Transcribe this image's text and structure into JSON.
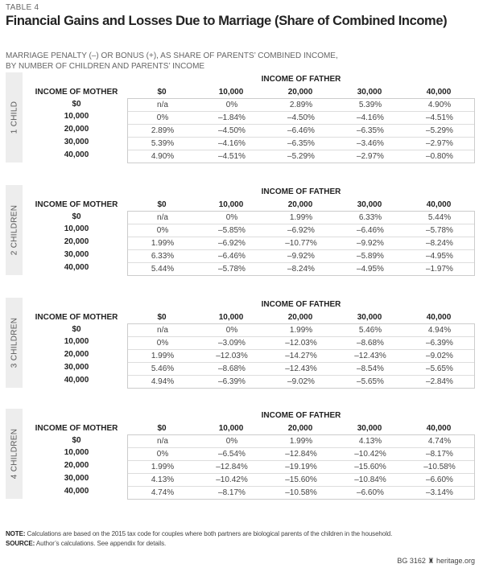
{
  "table_label": "TABLE 4",
  "title": "Financial Gains and Losses Due to Marriage (Share of Combined Income)",
  "subtitle_line1": "MARRIAGE PENALTY (–) OR BONUS (+), AS SHARE OF PARENTS’ COMBINED INCOME,",
  "subtitle_line2": "BY NUMBER OF CHILDREN AND PARENTS’ INCOME",
  "column_group_label": "INCOME OF FATHER",
  "row_header_label": "INCOME OF MOTHER",
  "columns": [
    "$0",
    "10,000",
    "20,000",
    "30,000",
    "40,000"
  ],
  "row_labels": [
    "$0",
    "10,000",
    "20,000",
    "30,000",
    "40,000"
  ],
  "tables": [
    {
      "group": "1 CHILD",
      "rows": [
        [
          "n/a",
          "0%",
          "2.89%",
          "5.39%",
          "4.90%"
        ],
        [
          "0%",
          "–1.84%",
          "–4.50%",
          "–4.16%",
          "–4.51%"
        ],
        [
          "2.89%",
          "–4.50%",
          "–6.46%",
          "–6.35%",
          "–5.29%"
        ],
        [
          "5.39%",
          "–4.16%",
          "–6.35%",
          "–3.46%",
          "–2.97%"
        ],
        [
          "4.90%",
          "–4.51%",
          "–5.29%",
          "–2.97%",
          "–0.80%"
        ]
      ]
    },
    {
      "group": "2 CHILDREN",
      "rows": [
        [
          "n/a",
          "0%",
          "1.99%",
          "6.33%",
          "5.44%"
        ],
        [
          "0%",
          "–5.85%",
          "–6.92%",
          "–6.46%",
          "–5.78%"
        ],
        [
          "1.99%",
          "–6.92%",
          "–10.77%",
          "–9.92%",
          "–8.24%"
        ],
        [
          "6.33%",
          "–6.46%",
          "–9.92%",
          "–5.89%",
          "–4.95%"
        ],
        [
          "5.44%",
          "–5.78%",
          "–8.24%",
          "–4.95%",
          "–1.97%"
        ]
      ]
    },
    {
      "group": "3 CHILDREN",
      "rows": [
        [
          "n/a",
          "0%",
          "1.99%",
          "5.46%",
          "4.94%"
        ],
        [
          "0%",
          "–3.09%",
          "–12.03%",
          "–8.68%",
          "–6.39%"
        ],
        [
          "1.99%",
          "–12.03%",
          "–14.27%",
          "–12.43%",
          "–9.02%"
        ],
        [
          "5.46%",
          "–8.68%",
          "–12.43%",
          "–8.54%",
          "–5.65%"
        ],
        [
          "4.94%",
          "–6.39%",
          "–9.02%",
          "–5.65%",
          "–2.84%"
        ]
      ]
    },
    {
      "group": "4 CHILDREN",
      "rows": [
        [
          "n/a",
          "0%",
          "1.99%",
          "4.13%",
          "4.74%"
        ],
        [
          "0%",
          "–6.54%",
          "–12.84%",
          "–10.42%",
          "–8.17%"
        ],
        [
          "1.99%",
          "–12.84%",
          "–19.19%",
          "–15.60%",
          "–10.58%"
        ],
        [
          "4.13%",
          "–10.42%",
          "–15.60%",
          "–10.84%",
          "–6.60%"
        ],
        [
          "4.74%",
          "–8.17%",
          "–10.58%",
          "–6.60%",
          "–3.14%"
        ]
      ]
    }
  ],
  "note_label": "NOTE:",
  "note_text": " Calculations are based on the 2015 tax code for couples where both partners are biological parents of the children in the household.",
  "source_label": "SOURCE:",
  "source_text": " Author’s calculations. See appendix for details.",
  "footer": "BG 3162 ♜ heritage.org"
}
